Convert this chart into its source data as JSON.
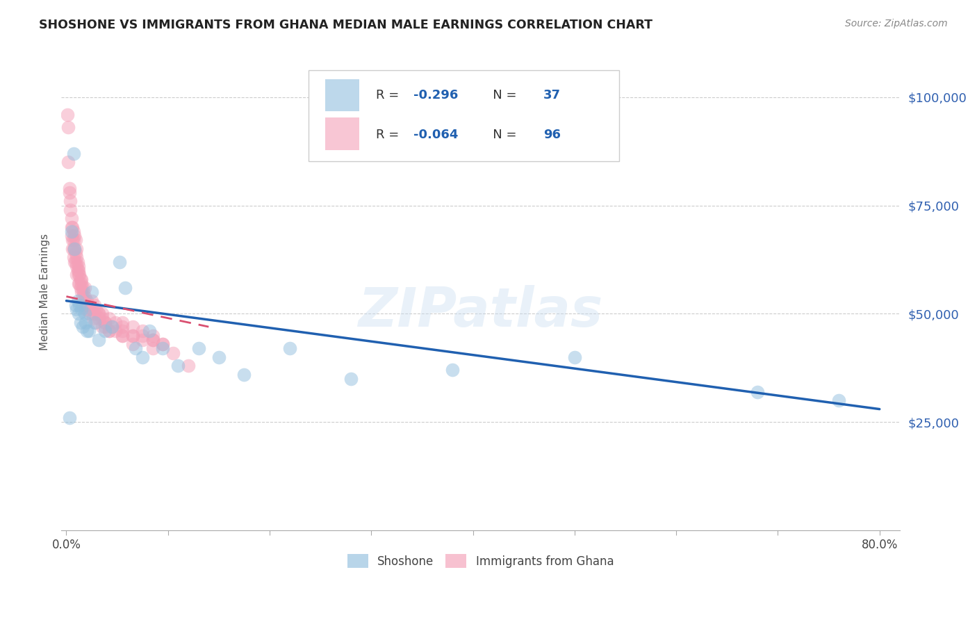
{
  "title": "SHOSHONE VS IMMIGRANTS FROM GHANA MEDIAN MALE EARNINGS CORRELATION CHART",
  "source": "Source: ZipAtlas.com",
  "ylabel": "Median Male Earnings",
  "y_ticks": [
    25000,
    50000,
    75000,
    100000
  ],
  "y_tick_labels": [
    "$25,000",
    "$50,000",
    "$75,000",
    "$100,000"
  ],
  "legend_r1": "R = ",
  "legend_r1_val": "-0.296",
  "legend_n1": "   N = ",
  "legend_n1_val": "37",
  "legend_r2_val": "-0.064",
  "legend_n2_val": "96",
  "legend_label1": "Shoshone",
  "legend_label2": "Immigrants from Ghana",
  "watermark": "ZIPatlas",
  "series1_color": "#92bfde",
  "series2_color": "#f4a0b8",
  "trendline1_color": "#2060b0",
  "trendline2_color": "#d94f70",
  "shoshone_x": [
    0.003,
    0.005,
    0.007,
    0.008,
    0.009,
    0.01,
    0.011,
    0.012,
    0.013,
    0.014,
    0.015,
    0.016,
    0.018,
    0.019,
    0.02,
    0.022,
    0.025,
    0.028,
    0.032,
    0.038,
    0.045,
    0.052,
    0.058,
    0.068,
    0.075,
    0.082,
    0.095,
    0.11,
    0.13,
    0.15,
    0.175,
    0.22,
    0.28,
    0.38,
    0.5,
    0.68,
    0.76
  ],
  "shoshone_y": [
    26000,
    69000,
    87000,
    65000,
    52000,
    51000,
    53000,
    50000,
    52000,
    48000,
    51000,
    47000,
    50000,
    48000,
    46000,
    46000,
    55000,
    48000,
    44000,
    46000,
    47000,
    62000,
    56000,
    42000,
    40000,
    46000,
    42000,
    38000,
    42000,
    40000,
    36000,
    42000,
    35000,
    37000,
    40000,
    32000,
    30000
  ],
  "ghana_x": [
    0.001,
    0.002,
    0.002,
    0.003,
    0.003,
    0.004,
    0.004,
    0.005,
    0.005,
    0.005,
    0.006,
    0.006,
    0.006,
    0.007,
    0.007,
    0.007,
    0.007,
    0.008,
    0.008,
    0.008,
    0.009,
    0.009,
    0.009,
    0.01,
    0.01,
    0.01,
    0.01,
    0.011,
    0.011,
    0.012,
    0.012,
    0.012,
    0.013,
    0.013,
    0.014,
    0.014,
    0.015,
    0.015,
    0.016,
    0.016,
    0.016,
    0.017,
    0.017,
    0.018,
    0.018,
    0.019,
    0.02,
    0.02,
    0.021,
    0.022,
    0.023,
    0.025,
    0.026,
    0.028,
    0.029,
    0.032,
    0.035,
    0.038,
    0.042,
    0.048,
    0.055,
    0.065,
    0.075,
    0.085,
    0.095,
    0.055,
    0.065,
    0.075,
    0.085,
    0.035,
    0.042,
    0.048,
    0.025,
    0.029,
    0.032,
    0.035,
    0.038,
    0.012,
    0.015,
    0.018,
    0.042,
    0.032,
    0.065,
    0.055,
    0.028,
    0.038,
    0.055,
    0.065,
    0.085,
    0.12,
    0.095,
    0.105,
    0.075,
    0.085,
    0.055,
    0.045
  ],
  "ghana_y": [
    96000,
    93000,
    85000,
    79000,
    78000,
    76000,
    74000,
    72000,
    70000,
    68000,
    70000,
    67000,
    65000,
    69000,
    67000,
    65000,
    63000,
    68000,
    65000,
    62000,
    67000,
    64000,
    62000,
    65000,
    63000,
    61000,
    59000,
    62000,
    60000,
    61000,
    59000,
    57000,
    59000,
    57000,
    58000,
    56000,
    57000,
    55000,
    56000,
    54000,
    52000,
    55000,
    53000,
    54000,
    52000,
    51000,
    53000,
    51000,
    52000,
    52000,
    50000,
    51000,
    49000,
    50000,
    48000,
    49000,
    47000,
    47000,
    46000,
    46000,
    45000,
    45000,
    44000,
    44000,
    43000,
    48000,
    47000,
    46000,
    45000,
    50000,
    49000,
    48000,
    53000,
    51000,
    50000,
    49000,
    48000,
    60000,
    58000,
    56000,
    46000,
    50000,
    45000,
    47000,
    52000,
    48000,
    45000,
    43000,
    42000,
    38000,
    43000,
    41000,
    45000,
    44000,
    46000,
    47000
  ],
  "trendline1_x": [
    0.0,
    0.8
  ],
  "trendline1_y": [
    53000,
    28000
  ],
  "trendline2_x": [
    0.0,
    0.14
  ],
  "trendline2_y": [
    54000,
    47000
  ],
  "xlim": [
    -0.005,
    0.82
  ],
  "ylim": [
    0,
    110000
  ],
  "background_color": "#ffffff"
}
